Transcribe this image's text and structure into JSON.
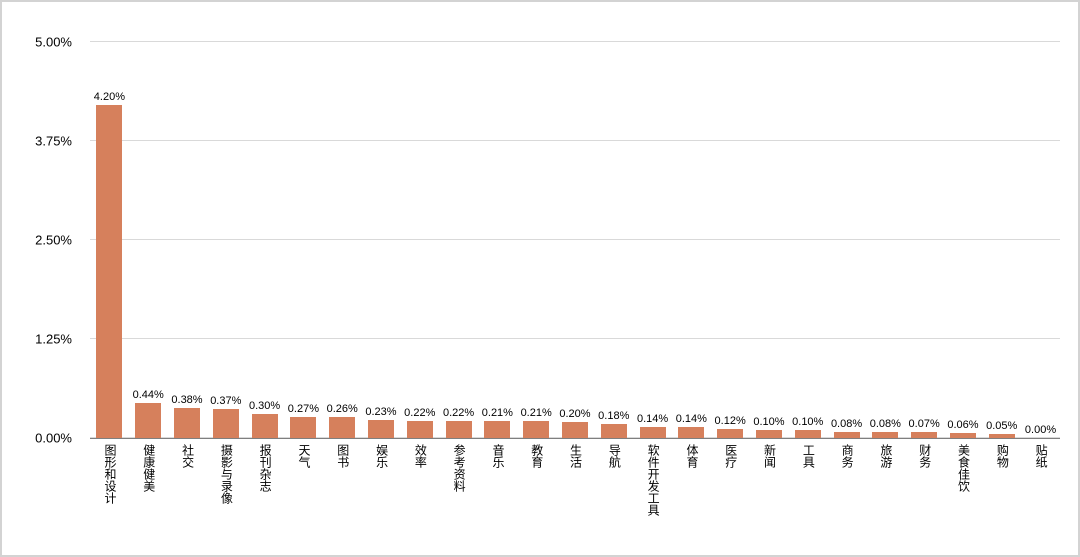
{
  "chart_data": {
    "type": "bar",
    "title": "",
    "xlabel": "",
    "ylabel": "",
    "grid": true,
    "legend": "none",
    "ylim": [
      0,
      5
    ],
    "y_ticks": [
      "0.00%",
      "1.25%",
      "2.50%",
      "3.75%",
      "5.00%"
    ],
    "bar_color": "#D6805C",
    "axis_line_color": "#7f7f7f",
    "gridline_color": "#d9d9d9",
    "categories": [
      "图形和设计",
      "健康健美",
      "社交",
      "摄影与录像",
      "报刊杂志",
      "天气",
      "图书",
      "娱乐",
      "效率",
      "参考资料",
      "音乐",
      "教育",
      "生活",
      "导航",
      "软件开发工具",
      "体育",
      "医疗",
      "新闻",
      "工具",
      "商务",
      "旅游",
      "财务",
      "美食佳饮",
      "购物",
      "贴纸"
    ],
    "values": [
      4.2,
      0.44,
      0.38,
      0.37,
      0.3,
      0.27,
      0.26,
      0.23,
      0.22,
      0.22,
      0.21,
      0.21,
      0.2,
      0.18,
      0.14,
      0.14,
      0.12,
      0.1,
      0.1,
      0.08,
      0.08,
      0.07,
      0.06,
      0.05,
      0.0
    ],
    "value_labels": [
      "4.20%",
      "0.44%",
      "0.38%",
      "0.37%",
      "0.30%",
      "0.27%",
      "0.26%",
      "0.23%",
      "0.22%",
      "0.22%",
      "0.21%",
      "0.21%",
      "0.20%",
      "0.18%",
      "0.14%",
      "0.14%",
      "0.12%",
      "0.10%",
      "0.10%",
      "0.08%",
      "0.08%",
      "0.07%",
      "0.06%",
      "0.05%",
      "0.00%"
    ]
  }
}
